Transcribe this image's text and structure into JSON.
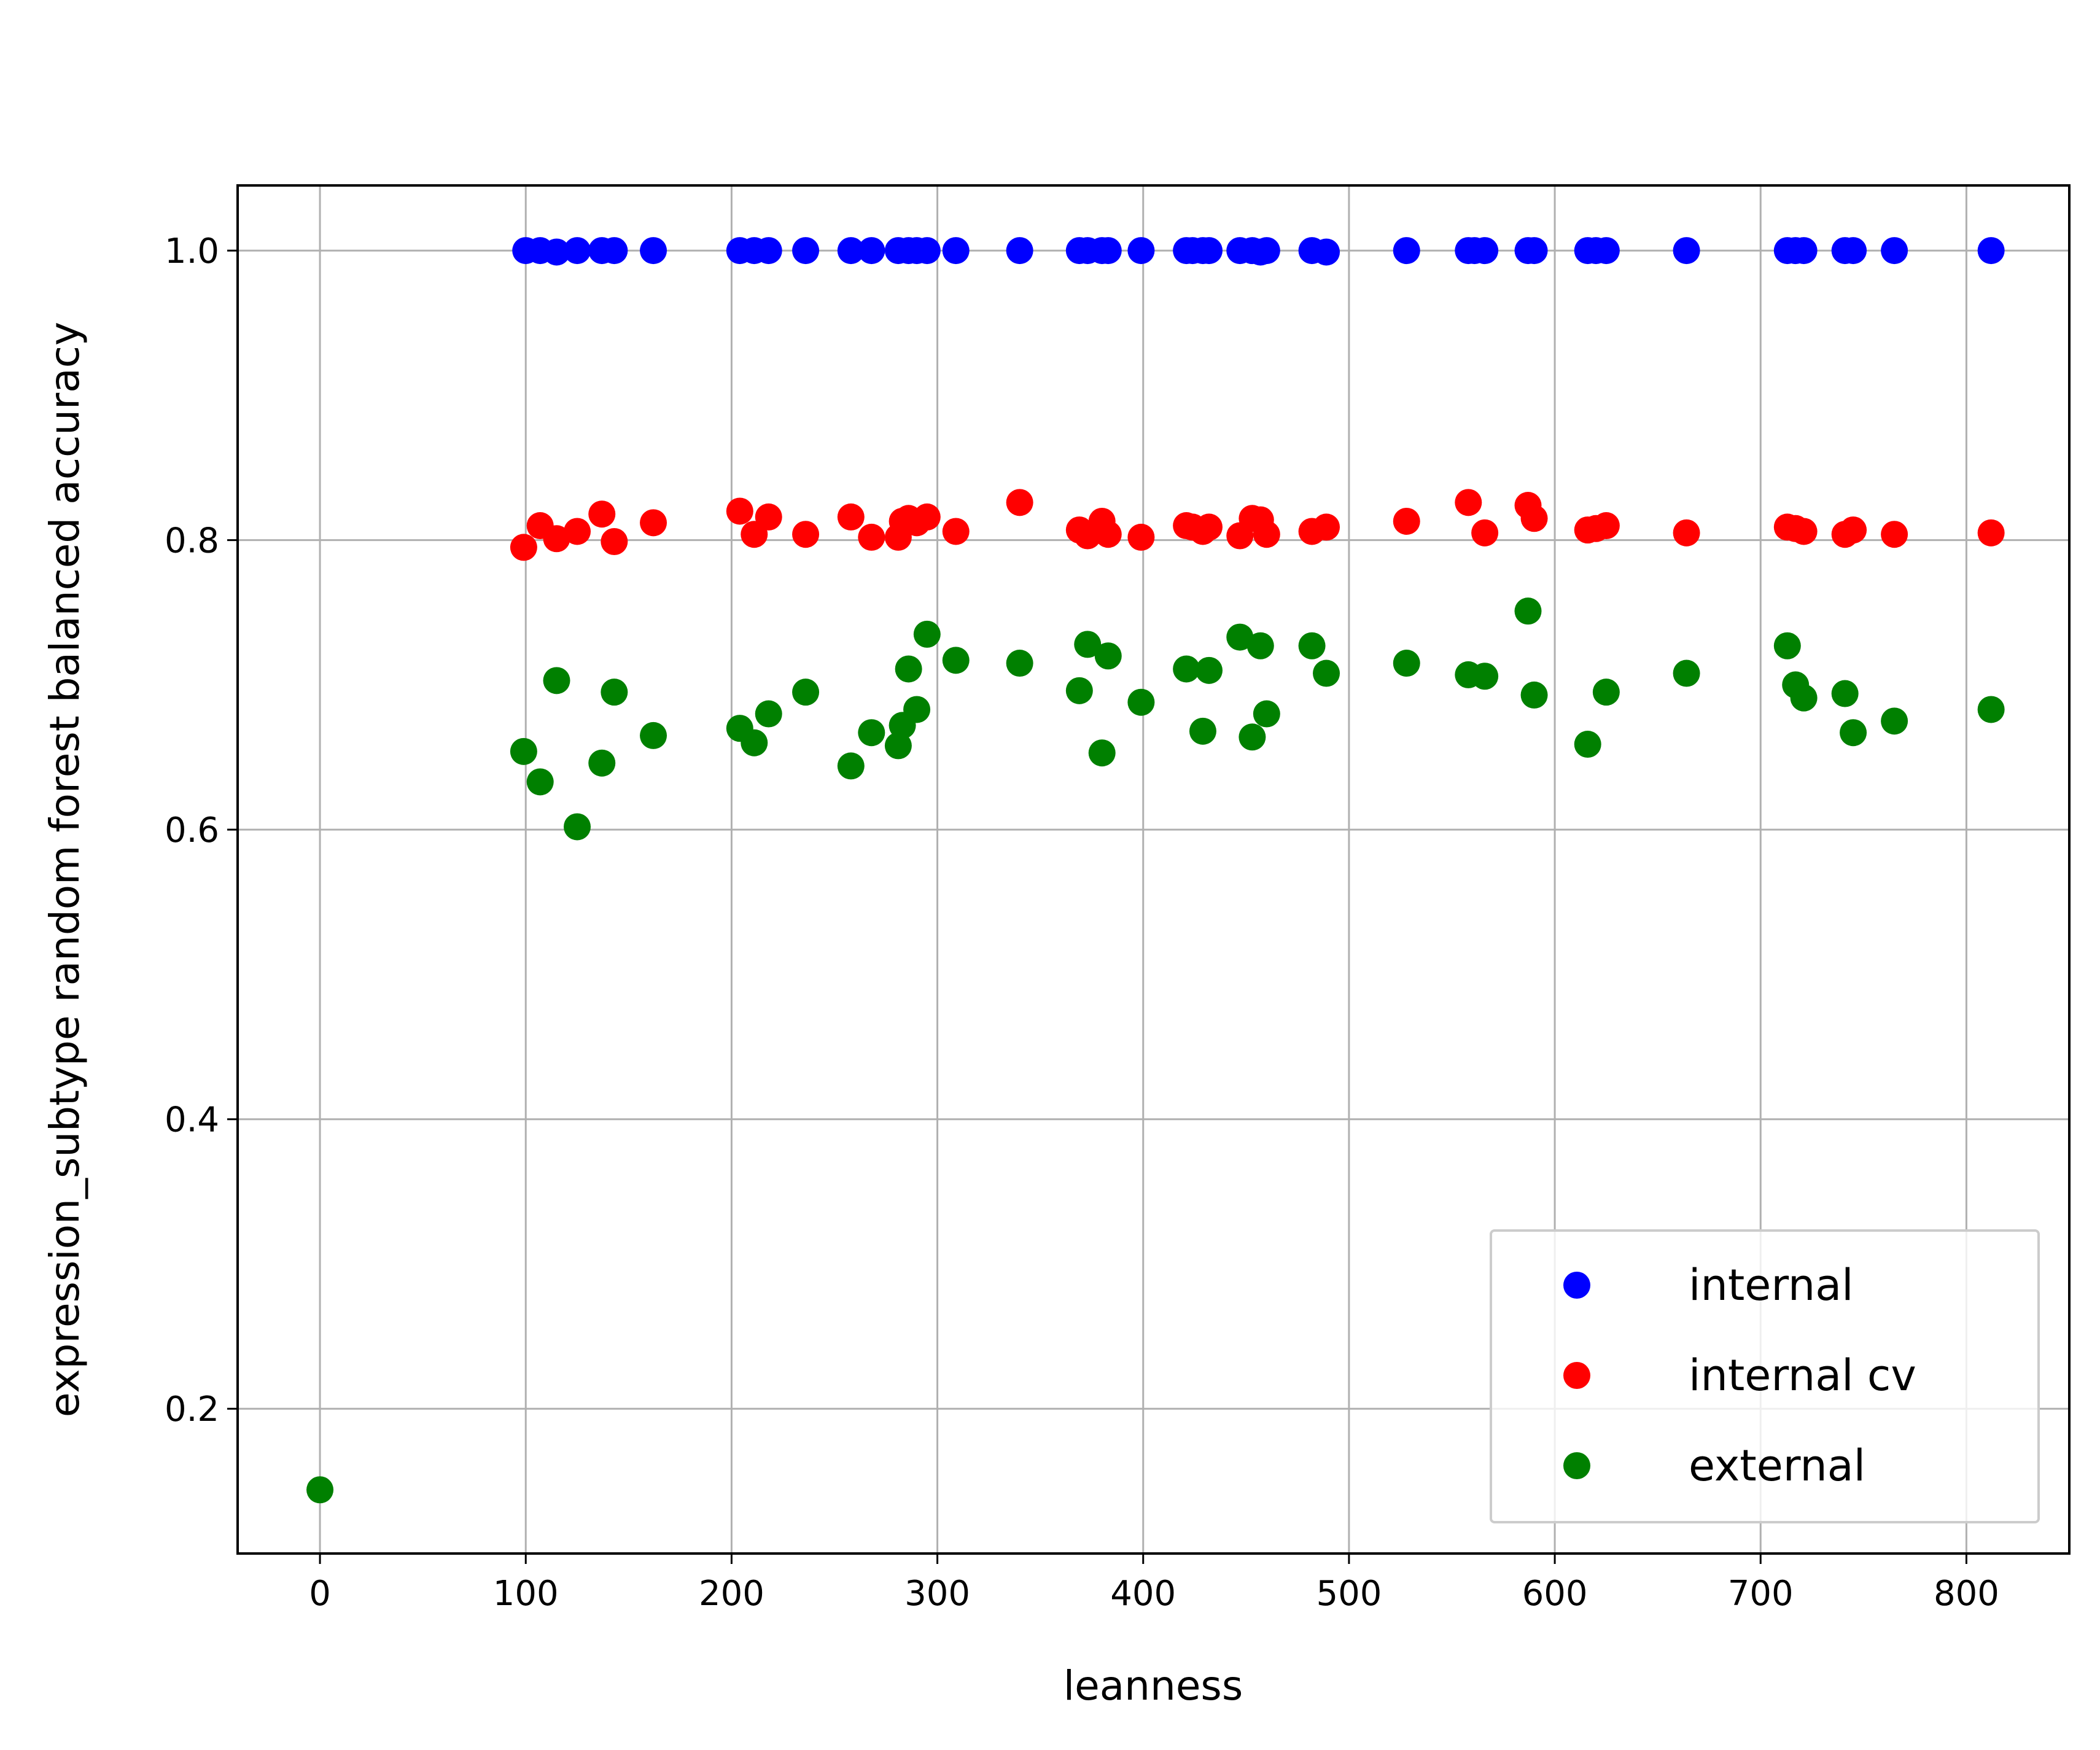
{
  "chart_data": {
    "type": "scatter",
    "xlabel": "leanness",
    "ylabel": "expression_subtype random forest balanced accuracy",
    "xlim": [
      -40,
      850
    ],
    "ylim": [
      0.1,
      1.045
    ],
    "xticks": [
      "0",
      "100",
      "200",
      "300",
      "400",
      "500",
      "600",
      "700",
      "800"
    ],
    "yticks": [
      "0.2",
      "0.4",
      "0.6",
      "0.8",
      "1.0"
    ],
    "grid": true,
    "legend_position": "lower-right",
    "series": [
      {
        "name": "internal",
        "color": "#0000ff",
        "points": [
          [
            100,
            1.0
          ],
          [
            107,
            1.0
          ],
          [
            115,
            0.999
          ],
          [
            125,
            1.0
          ],
          [
            137,
            1.0
          ],
          [
            143,
            1.0
          ],
          [
            162,
            1.0
          ],
          [
            204,
            1.0
          ],
          [
            211,
            1.0
          ],
          [
            218,
            1.0
          ],
          [
            236,
            1.0
          ],
          [
            258,
            1.0
          ],
          [
            268,
            1.0
          ],
          [
            281,
            1.0
          ],
          [
            286,
            1.0
          ],
          [
            290,
            1.0
          ],
          [
            295,
            1.0
          ],
          [
            309,
            1.0
          ],
          [
            340,
            1.0
          ],
          [
            369,
            1.0
          ],
          [
            373,
            1.0
          ],
          [
            380,
            1.0
          ],
          [
            383,
            1.0
          ],
          [
            399,
            1.0
          ],
          [
            421,
            1.0
          ],
          [
            424,
            1.0
          ],
          [
            429,
            1.0
          ],
          [
            432,
            1.0
          ],
          [
            447,
            1.0
          ],
          [
            453,
            1.0
          ],
          [
            457,
            0.999
          ],
          [
            460,
            1.0
          ],
          [
            482,
            1.0
          ],
          [
            489,
            0.999
          ],
          [
            528,
            1.0
          ],
          [
            558,
            1.0
          ],
          [
            561,
            1.0
          ],
          [
            566,
            1.0
          ],
          [
            587,
            1.0
          ],
          [
            590,
            1.0
          ],
          [
            616,
            1.0
          ],
          [
            620,
            1.0
          ],
          [
            625,
            1.0
          ],
          [
            664,
            1.0
          ],
          [
            713,
            1.0
          ],
          [
            717,
            1.0
          ],
          [
            721,
            1.0
          ],
          [
            741,
            1.0
          ],
          [
            745,
            1.0
          ],
          [
            765,
            1.0
          ],
          [
            812,
            1.0
          ]
        ]
      },
      {
        "name": "internal cv",
        "color": "#ff0000",
        "points": [
          [
            99,
            0.795
          ],
          [
            107,
            0.81
          ],
          [
            115,
            0.801
          ],
          [
            125,
            0.806
          ],
          [
            137,
            0.818
          ],
          [
            143,
            0.799
          ],
          [
            162,
            0.812
          ],
          [
            204,
            0.82
          ],
          [
            211,
            0.804
          ],
          [
            218,
            0.816
          ],
          [
            236,
            0.804
          ],
          [
            258,
            0.816
          ],
          [
            268,
            0.802
          ],
          [
            281,
            0.802
          ],
          [
            283,
            0.813
          ],
          [
            286,
            0.815
          ],
          [
            290,
            0.812
          ],
          [
            295,
            0.816
          ],
          [
            309,
            0.806
          ],
          [
            340,
            0.826
          ],
          [
            369,
            0.807
          ],
          [
            373,
            0.803
          ],
          [
            380,
            0.813
          ],
          [
            383,
            0.804
          ],
          [
            399,
            0.802
          ],
          [
            421,
            0.81
          ],
          [
            424,
            0.809
          ],
          [
            429,
            0.806
          ],
          [
            432,
            0.809
          ],
          [
            447,
            0.803
          ],
          [
            453,
            0.815
          ],
          [
            457,
            0.814
          ],
          [
            460,
            0.804
          ],
          [
            482,
            0.806
          ],
          [
            489,
            0.809
          ],
          [
            528,
            0.813
          ],
          [
            558,
            0.826
          ],
          [
            566,
            0.805
          ],
          [
            587,
            0.824
          ],
          [
            590,
            0.815
          ],
          [
            616,
            0.807
          ],
          [
            620,
            0.808
          ],
          [
            625,
            0.81
          ],
          [
            664,
            0.805
          ],
          [
            713,
            0.809
          ],
          [
            717,
            0.808
          ],
          [
            721,
            0.806
          ],
          [
            741,
            0.804
          ],
          [
            745,
            0.807
          ],
          [
            765,
            0.804
          ],
          [
            812,
            0.805
          ]
        ]
      },
      {
        "name": "external",
        "color": "#008000",
        "points": [
          [
            0,
            0.144
          ],
          [
            99,
            0.654
          ],
          [
            107,
            0.633
          ],
          [
            115,
            0.703
          ],
          [
            125,
            0.602
          ],
          [
            137,
            0.646
          ],
          [
            143,
            0.695
          ],
          [
            162,
            0.665
          ],
          [
            204,
            0.67
          ],
          [
            211,
            0.66
          ],
          [
            218,
            0.68
          ],
          [
            236,
            0.695
          ],
          [
            258,
            0.644
          ],
          [
            268,
            0.667
          ],
          [
            281,
            0.658
          ],
          [
            283,
            0.672
          ],
          [
            286,
            0.711
          ],
          [
            290,
            0.683
          ],
          [
            295,
            0.735
          ],
          [
            309,
            0.717
          ],
          [
            340,
            0.715
          ],
          [
            369,
            0.696
          ],
          [
            373,
            0.728
          ],
          [
            380,
            0.653
          ],
          [
            383,
            0.72
          ],
          [
            399,
            0.688
          ],
          [
            421,
            0.711
          ],
          [
            429,
            0.668
          ],
          [
            432,
            0.71
          ],
          [
            447,
            0.733
          ],
          [
            453,
            0.664
          ],
          [
            457,
            0.727
          ],
          [
            460,
            0.68
          ],
          [
            482,
            0.727
          ],
          [
            489,
            0.708
          ],
          [
            528,
            0.715
          ],
          [
            558,
            0.707
          ],
          [
            566,
            0.706
          ],
          [
            587,
            0.751
          ],
          [
            590,
            0.693
          ],
          [
            616,
            0.659
          ],
          [
            625,
            0.695
          ],
          [
            664,
            0.708
          ],
          [
            713,
            0.727
          ],
          [
            717,
            0.7
          ],
          [
            721,
            0.691
          ],
          [
            741,
            0.694
          ],
          [
            745,
            0.667
          ],
          [
            765,
            0.675
          ],
          [
            812,
            0.683
          ]
        ]
      }
    ]
  }
}
